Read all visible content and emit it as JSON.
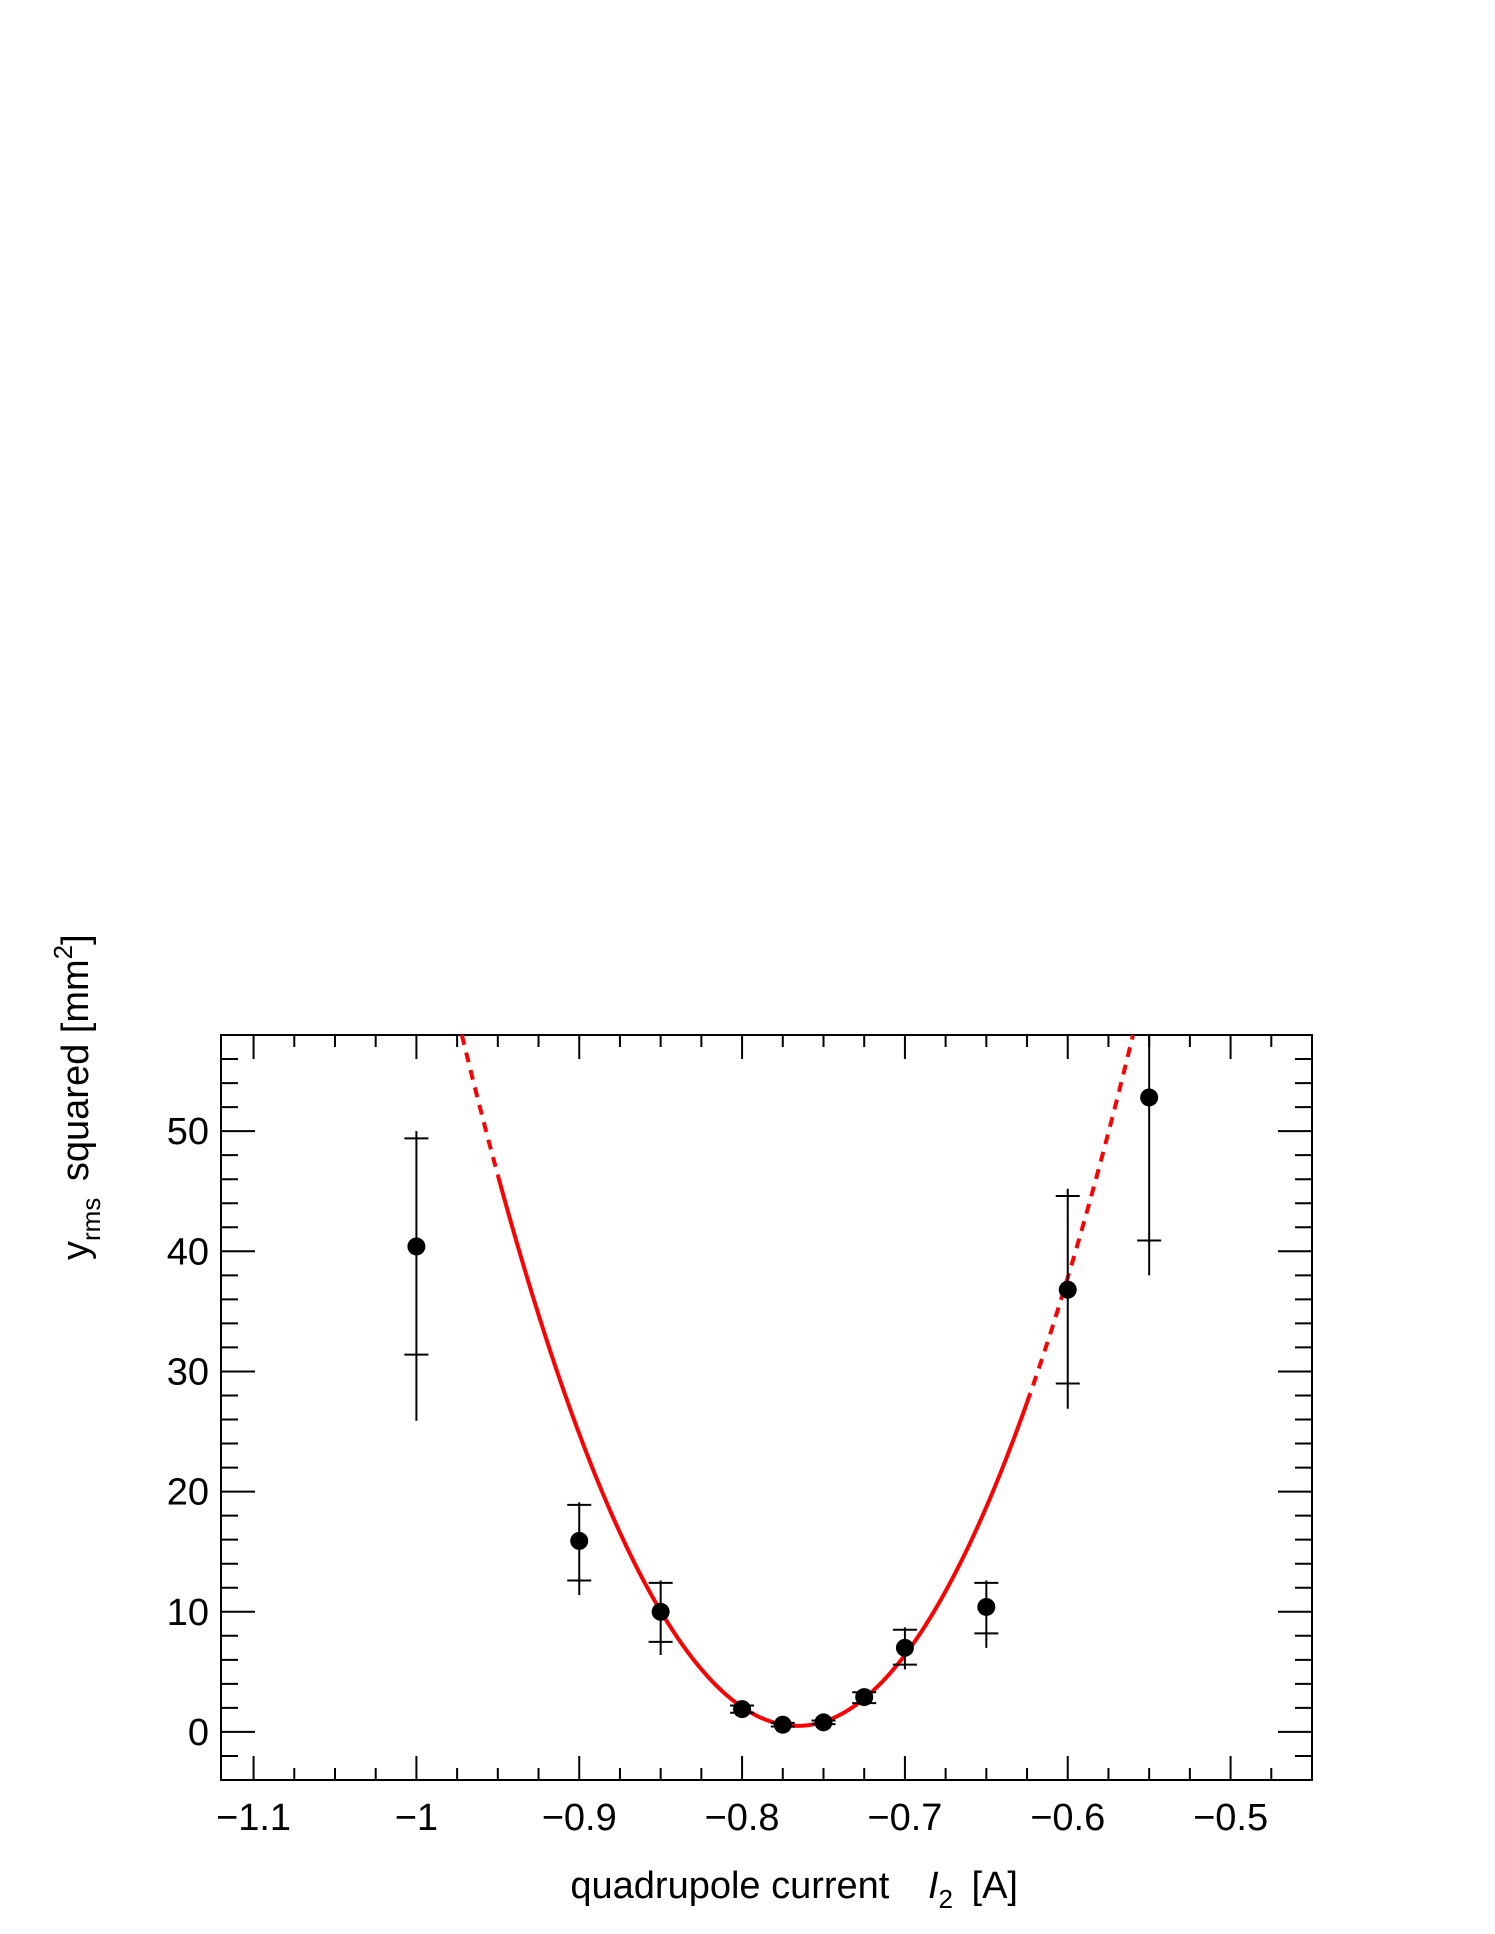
{
  "chart_data": {
    "type": "scatter",
    "title": "",
    "xlabel_main": "quadrupole current",
    "xlabel_symbol": "I",
    "xlabel_sub": "2",
    "xlabel_unit": "[A]",
    "ylabel_main": "y",
    "ylabel_sub": "rms",
    "ylabel_rest": "squared [mm",
    "ylabel_sup": "2",
    "ylabel_end": "]",
    "xlim": [
      -1.12,
      -0.45
    ],
    "ylim": [
      -4,
      58
    ],
    "x_ticks": [
      -1.1,
      -1.0,
      -0.9,
      -0.8,
      -0.7,
      -0.6,
      -0.5
    ],
    "x_tick_labels": [
      "−1.1",
      "−1",
      "−0.9",
      "−0.8",
      "−0.7",
      "−0.6",
      "−0.5"
    ],
    "y_ticks": [
      0,
      10,
      20,
      30,
      40,
      50
    ],
    "y_tick_labels": [
      "0",
      "10",
      "20",
      "30",
      "40",
      "50"
    ],
    "grid": false,
    "legend": "none",
    "points": [
      {
        "x": -1.0,
        "y": 40.4,
        "err_low": 25.9,
        "err_high": 50.0,
        "mark_low": 31.4,
        "mark_high": 49.4
      },
      {
        "x": -0.9,
        "y": 15.9,
        "err_low": 11.4,
        "err_high": 19.1,
        "mark_low": 12.6,
        "mark_high": 18.9
      },
      {
        "x": -0.85,
        "y": 10.0,
        "err_low": 6.4,
        "err_high": 12.6,
        "mark_low": 7.5,
        "mark_high": 12.4
      },
      {
        "x": -0.8,
        "y": 1.9,
        "err_low": 1.5,
        "err_high": 2.3,
        "mark_low": 1.6,
        "mark_high": 2.2
      },
      {
        "x": -0.775,
        "y": 0.6,
        "err_low": 0.4,
        "err_high": 0.8,
        "mark_low": 0.45,
        "mark_high": 0.75
      },
      {
        "x": -0.75,
        "y": 0.8,
        "err_low": 0.6,
        "err_high": 1.0,
        "mark_low": 0.65,
        "mark_high": 0.95
      },
      {
        "x": -0.725,
        "y": 2.9,
        "err_low": 2.2,
        "err_high": 3.5,
        "mark_low": 2.4,
        "mark_high": 3.3
      },
      {
        "x": -0.7,
        "y": 7.0,
        "err_low": 5.2,
        "err_high": 8.7,
        "mark_low": 5.6,
        "mark_high": 8.5
      },
      {
        "x": -0.65,
        "y": 10.4,
        "err_low": 7.0,
        "err_high": 12.6,
        "mark_low": 8.2,
        "mark_high": 12.4
      },
      {
        "x": -0.6,
        "y": 36.8,
        "err_low": 26.9,
        "err_high": 45.2,
        "mark_low": 29.0,
        "mark_high": 44.6
      },
      {
        "x": -0.55,
        "y": 52.8,
        "err_low": 38.0,
        "err_high": 58.0,
        "mark_low": 40.9,
        "mark_high": 58.0
      }
    ],
    "fit": {
      "model": "quadratic",
      "vertex_x": -0.766,
      "vertex_y": 0.5,
      "curvature": 1354,
      "solid_range": [
        -0.95,
        -0.625
      ],
      "dashed_range": [
        [
          -1.035,
          -0.95
        ],
        [
          -0.625,
          -0.54
        ]
      ],
      "color": "#ff0000"
    },
    "marker_color": "#000000"
  }
}
